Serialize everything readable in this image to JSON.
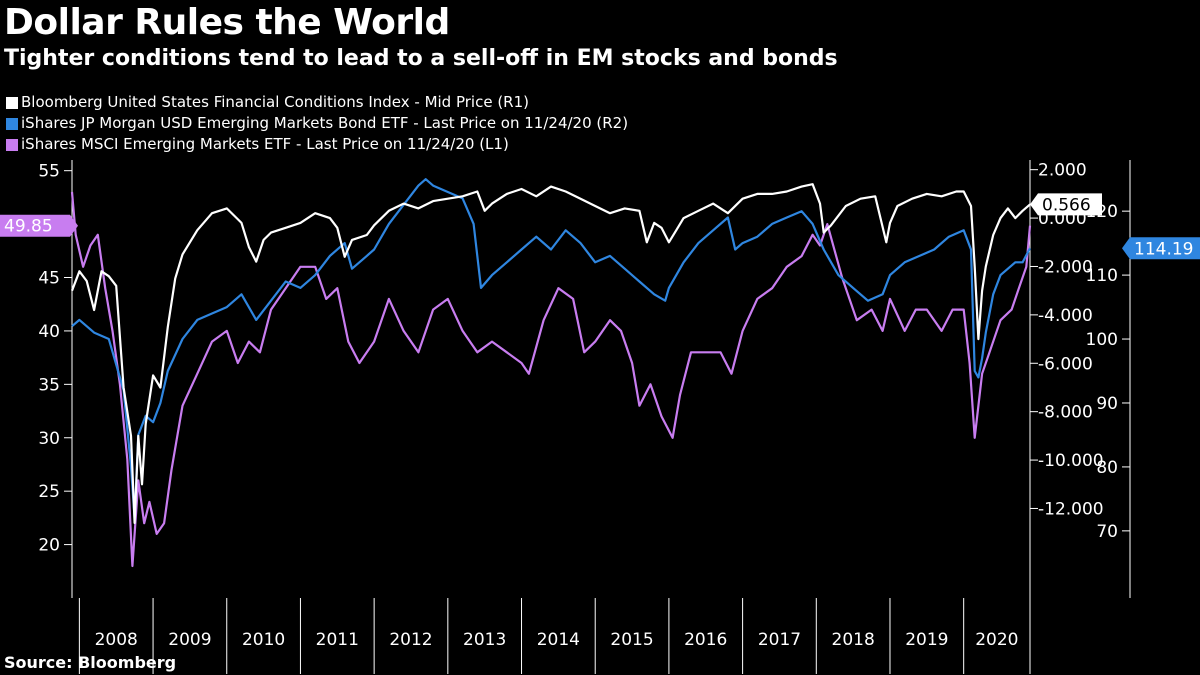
{
  "title": "Dollar Rules the World",
  "subtitle": "Tighter conditions tend to lead to a sell-off in EM stocks and bonds",
  "source": "Source: Bloomberg",
  "chart_data": {
    "type": "line",
    "x_tick_labels": [
      "2008",
      "2009",
      "2010",
      "2011",
      "2012",
      "2013",
      "2014",
      "2015",
      "2016",
      "2017",
      "2018",
      "2019",
      "2020"
    ],
    "x_range": [
      2007.9,
      2020.9
    ],
    "axes": {
      "L1": {
        "min": 15,
        "max": 56,
        "ticks": [
          20,
          25,
          30,
          35,
          40,
          45,
          50,
          55
        ]
      },
      "R1": {
        "min": -15.7,
        "max": 2.4,
        "ticks": [
          2,
          0,
          -2,
          -4,
          -6,
          -8,
          -10,
          -12
        ],
        "tick_labels": [
          "2.000",
          "0.000",
          "-2.000",
          "-4.000",
          "-6.000",
          "-8.000",
          "-10.000",
          "-12.000"
        ]
      },
      "R2": {
        "min": 59.5,
        "max": 128,
        "ticks": [
          70,
          80,
          90,
          100,
          110,
          120
        ]
      }
    },
    "series": [
      {
        "name": "Bloomberg United States Financial Conditions Index - Mid Price (R1)",
        "axis": "R1",
        "color": "#ffffff",
        "last_value_label": "0.566",
        "last_value": 0.566,
        "x": [
          2007.9,
          2008.0,
          2008.1,
          2008.2,
          2008.3,
          2008.4,
          2008.5,
          2008.6,
          2008.7,
          2008.75,
          2008.8,
          2008.85,
          2008.9,
          2009.0,
          2009.1,
          2009.2,
          2009.3,
          2009.4,
          2009.5,
          2009.6,
          2009.8,
          2010.0,
          2010.2,
          2010.3,
          2010.4,
          2010.5,
          2010.6,
          2010.8,
          2011.0,
          2011.2,
          2011.4,
          2011.5,
          2011.6,
          2011.7,
          2011.9,
          2012.0,
          2012.2,
          2012.4,
          2012.6,
          2012.8,
          2013.0,
          2013.2,
          2013.4,
          2013.5,
          2013.6,
          2013.8,
          2014.0,
          2014.2,
          2014.4,
          2014.6,
          2014.8,
          2015.0,
          2015.2,
          2015.4,
          2015.6,
          2015.7,
          2015.8,
          2015.9,
          2016.0,
          2016.1,
          2016.2,
          2016.4,
          2016.6,
          2016.8,
          2017.0,
          2017.2,
          2017.4,
          2017.6,
          2017.8,
          2017.95,
          2018.05,
          2018.1,
          2018.2,
          2018.4,
          2018.6,
          2018.8,
          2018.95,
          2019.0,
          2019.1,
          2019.3,
          2019.5,
          2019.7,
          2019.9,
          2020.0,
          2020.1,
          2020.15,
          2020.2,
          2020.25,
          2020.3,
          2020.4,
          2020.5,
          2020.6,
          2020.7,
          2020.8,
          2020.9
        ],
        "values": [
          -3,
          -2.2,
          -2.6,
          -3.8,
          -2.2,
          -2.4,
          -2.8,
          -7,
          -9,
          -12.6,
          -9,
          -11,
          -8.5,
          -6.5,
          -7,
          -4.5,
          -2.5,
          -1.5,
          -1,
          -0.5,
          0.2,
          0.4,
          -0.2,
          -1.2,
          -1.8,
          -0.9,
          -0.6,
          -0.4,
          -0.2,
          0.2,
          0,
          -0.4,
          -1.6,
          -0.9,
          -0.7,
          -0.3,
          0.3,
          0.6,
          0.4,
          0.7,
          0.8,
          0.9,
          1.1,
          0.3,
          0.6,
          1,
          1.2,
          0.9,
          1.3,
          1.1,
          0.8,
          0.5,
          0.2,
          0.4,
          0.3,
          -1,
          -0.2,
          -0.4,
          -1,
          -0.5,
          0,
          0.3,
          0.6,
          0.2,
          0.8,
          1,
          1,
          1.1,
          1.3,
          1.4,
          0.6,
          -0.6,
          -0.3,
          0.5,
          0.8,
          0.9,
          -1,
          -0.2,
          0.5,
          0.8,
          1,
          0.9,
          1.1,
          1.1,
          0.5,
          -2,
          -5,
          -3,
          -2,
          -0.7,
          0,
          0.4,
          0,
          0.3,
          0.566
        ]
      },
      {
        "name": "iShares JP Morgan USD Emerging Markets Bond ETF - Last Price on 11/24/20 (R2)",
        "axis": "R2",
        "color": "#2f86e0",
        "last_value_label": "114.19",
        "last_value": 114.19,
        "x": [
          2007.9,
          2008.0,
          2008.2,
          2008.4,
          2008.6,
          2008.7,
          2008.75,
          2008.8,
          2008.9,
          2009.0,
          2009.1,
          2009.2,
          2009.4,
          2009.6,
          2009.8,
          2010.0,
          2010.2,
          2010.4,
          2010.6,
          2010.8,
          2011.0,
          2011.2,
          2011.4,
          2011.6,
          2011.7,
          2011.9,
          2012.0,
          2012.2,
          2012.4,
          2012.6,
          2012.7,
          2012.8,
          2013.0,
          2013.2,
          2013.35,
          2013.45,
          2013.6,
          2013.8,
          2014.0,
          2014.2,
          2014.4,
          2014.6,
          2014.8,
          2015.0,
          2015.2,
          2015.4,
          2015.6,
          2015.8,
          2015.95,
          2016.0,
          2016.2,
          2016.4,
          2016.6,
          2016.8,
          2016.9,
          2017.0,
          2017.2,
          2017.4,
          2017.6,
          2017.8,
          2017.95,
          2018.1,
          2018.3,
          2018.5,
          2018.7,
          2018.9,
          2019.0,
          2019.2,
          2019.4,
          2019.6,
          2019.8,
          2020.0,
          2020.1,
          2020.15,
          2020.2,
          2020.25,
          2020.3,
          2020.4,
          2020.5,
          2020.6,
          2020.7,
          2020.8,
          2020.9
        ],
        "values": [
          102,
          103,
          101,
          100,
          92,
          80,
          72,
          85,
          88,
          87,
          90,
          95,
          100,
          103,
          104,
          105,
          107,
          103,
          106,
          109,
          108,
          110,
          113,
          115,
          111,
          113,
          114,
          118,
          121,
          124,
          125,
          124,
          123,
          122,
          118,
          108,
          110,
          112,
          114,
          116,
          114,
          117,
          115,
          112,
          113,
          111,
          109,
          107,
          106,
          108,
          112,
          115,
          117,
          119,
          114,
          115,
          116,
          118,
          119,
          120,
          118,
          114,
          110,
          108,
          106,
          107,
          110,
          112,
          113,
          114,
          116,
          117,
          114,
          95,
          94,
          97,
          101,
          107,
          110,
          111,
          112,
          112,
          114.19
        ]
      },
      {
        "name": "iShares MSCI Emerging Markets ETF - Last Price on 11/24/20 (L1)",
        "axis": "L1",
        "color": "#c87df0",
        "last_value_label": "49.85",
        "last_value": 49.85,
        "x": [
          2007.9,
          2007.95,
          2008.05,
          2008.15,
          2008.25,
          2008.35,
          2008.45,
          2008.55,
          2008.65,
          2008.72,
          2008.8,
          2008.88,
          2008.95,
          2009.05,
          2009.15,
          2009.25,
          2009.4,
          2009.6,
          2009.8,
          2010.0,
          2010.15,
          2010.3,
          2010.45,
          2010.6,
          2010.8,
          2011.0,
          2011.2,
          2011.35,
          2011.5,
          2011.65,
          2011.8,
          2012.0,
          2012.2,
          2012.4,
          2012.6,
          2012.8,
          2013.0,
          2013.2,
          2013.4,
          2013.6,
          2013.8,
          2014.0,
          2014.1,
          2014.3,
          2014.5,
          2014.7,
          2014.85,
          2015.0,
          2015.2,
          2015.35,
          2015.5,
          2015.6,
          2015.75,
          2015.9,
          2016.05,
          2016.15,
          2016.3,
          2016.5,
          2016.7,
          2016.85,
          2017.0,
          2017.2,
          2017.4,
          2017.6,
          2017.8,
          2017.95,
          2018.05,
          2018.15,
          2018.35,
          2018.55,
          2018.75,
          2018.9,
          2019.0,
          2019.2,
          2019.35,
          2019.5,
          2019.7,
          2019.85,
          2020.0,
          2020.08,
          2020.15,
          2020.2,
          2020.25,
          2020.35,
          2020.5,
          2020.65,
          2020.75,
          2020.85,
          2020.9
        ],
        "values": [
          53,
          49,
          46,
          48,
          49,
          44,
          40,
          35,
          28,
          18,
          26,
          22,
          24,
          21,
          22,
          27,
          33,
          36,
          39,
          40,
          37,
          39,
          38,
          42,
          44,
          46,
          46,
          43,
          44,
          39,
          37,
          39,
          43,
          40,
          38,
          42,
          43,
          40,
          38,
          39,
          38,
          37,
          36,
          41,
          44,
          43,
          38,
          39,
          41,
          40,
          37,
          33,
          35,
          32,
          30,
          34,
          38,
          38,
          38,
          36,
          40,
          43,
          44,
          46,
          47,
          49,
          48,
          50,
          45,
          41,
          42,
          40,
          43,
          40,
          42,
          42,
          40,
          42,
          42,
          37,
          30,
          33,
          36,
          38,
          41,
          42,
          44,
          46,
          49.85
        ]
      }
    ]
  }
}
